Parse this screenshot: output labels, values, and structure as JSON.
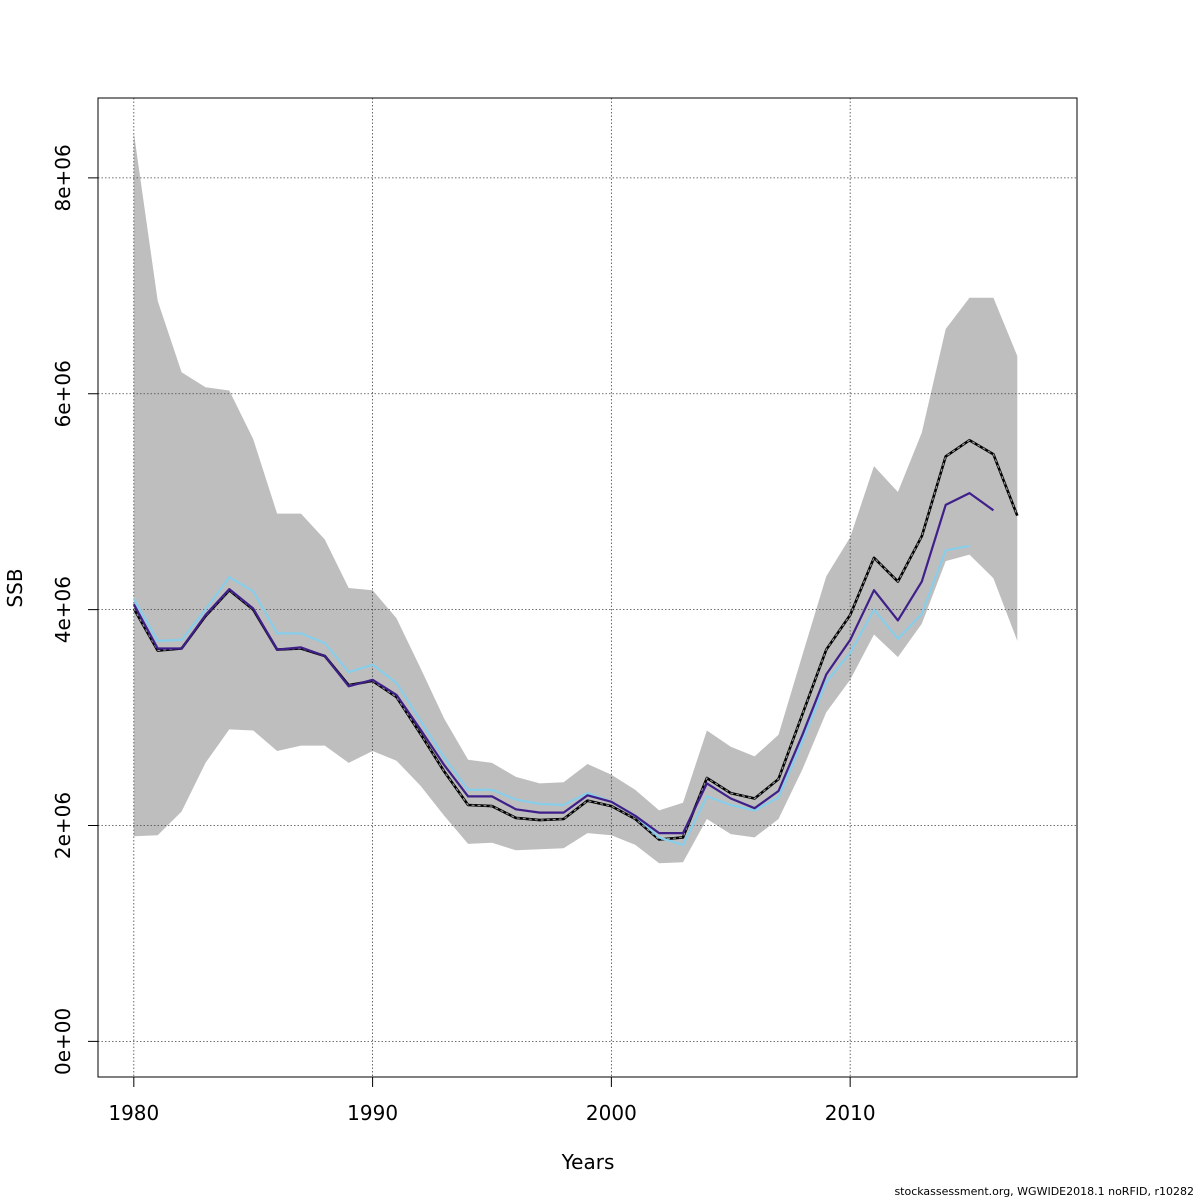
{
  "chart_data": {
    "type": "line",
    "xlabel": "Years",
    "ylabel": "SSB",
    "xlim": [
      1978.5,
      2019.5
    ],
    "ylim": [
      -330000,
      8740000
    ],
    "x_ticks": [
      1980,
      1990,
      2000,
      2010
    ],
    "y_ticks": [
      {
        "value": 0,
        "label": "0e+00"
      },
      {
        "value": 2000000,
        "label": "2e+06"
      },
      {
        "value": 4000000,
        "label": "4e+06"
      },
      {
        "value": 6000000,
        "label": "6e+06"
      },
      {
        "value": 8000000,
        "label": "8e+06"
      }
    ],
    "grid": true,
    "band": {
      "color": "#bebebe",
      "x": [
        1980,
        1981,
        1982,
        1983,
        1984,
        1985,
        1986,
        1987,
        1988,
        1989,
        1990,
        1991,
        1992,
        1993,
        1994,
        1995,
        1996,
        1997,
        1998,
        1999,
        2000,
        2001,
        2002,
        2003,
        2004,
        2005,
        2006,
        2007,
        2008,
        2009,
        2010,
        2011,
        2012,
        2013,
        2014,
        2015,
        2016,
        2017
      ],
      "upper": [
        8420000,
        6860000,
        6200000,
        6060000,
        6030000,
        5580000,
        4890000,
        4890000,
        4650000,
        4200000,
        4180000,
        3920000,
        3460000,
        2990000,
        2610000,
        2580000,
        2450000,
        2390000,
        2400000,
        2570000,
        2470000,
        2330000,
        2140000,
        2210000,
        2880000,
        2730000,
        2640000,
        2840000,
        3580000,
        4310000,
        4670000,
        5330000,
        5090000,
        5640000,
        6600000,
        6890000,
        6890000,
        6350000
      ],
      "lower": [
        1900000,
        1910000,
        2130000,
        2580000,
        2890000,
        2880000,
        2690000,
        2740000,
        2740000,
        2580000,
        2690000,
        2600000,
        2370000,
        2090000,
        1830000,
        1840000,
        1770000,
        1780000,
        1790000,
        1930000,
        1910000,
        1820000,
        1650000,
        1660000,
        2060000,
        1920000,
        1890000,
        2060000,
        2520000,
        3050000,
        3350000,
        3770000,
        3560000,
        3870000,
        4450000,
        4510000,
        4290000,
        3710000
      ]
    },
    "series": [
      {
        "color": "#000000",
        "dashed": true,
        "x": [
          1980,
          1981,
          1982,
          1983,
          1984,
          1985,
          1986,
          1987,
          1988,
          1989,
          1990,
          1991,
          1992,
          1993,
          1994,
          1995,
          1996,
          1997,
          1998,
          1999,
          2000,
          2001,
          2002,
          2003,
          2004,
          2005,
          2006,
          2007,
          2008,
          2009,
          2010,
          2011,
          2012,
          2013,
          2014,
          2015,
          2016,
          2017
        ],
        "values": [
          4010000,
          3620000,
          3640000,
          3940000,
          4180000,
          4000000,
          3630000,
          3640000,
          3570000,
          3300000,
          3340000,
          3190000,
          2850000,
          2500000,
          2190000,
          2180000,
          2070000,
          2050000,
          2060000,
          2230000,
          2180000,
          2060000,
          1870000,
          1890000,
          2440000,
          2300000,
          2250000,
          2430000,
          3030000,
          3630000,
          3950000,
          4480000,
          4260000,
          4680000,
          5420000,
          5570000,
          5440000,
          4870000
        ]
      },
      {
        "color": "#87ceeb",
        "dashed": false,
        "x": [
          1980,
          1981,
          1982,
          1983,
          1984,
          1985,
          1986,
          1987,
          1988,
          1989,
          1990,
          1991,
          1992,
          1993,
          1994,
          1995,
          1996,
          1997,
          1998,
          1999,
          2000,
          2001,
          2002,
          2003,
          2004,
          2005,
          2006,
          2007,
          2008,
          2009,
          2010,
          2011,
          2012,
          2013,
          2014,
          2015
        ],
        "values": [
          4100000,
          3710000,
          3720000,
          4000000,
          4300000,
          4170000,
          3780000,
          3780000,
          3690000,
          3420000,
          3490000,
          3320000,
          2970000,
          2630000,
          2330000,
          2330000,
          2240000,
          2200000,
          2190000,
          2300000,
          2220000,
          2090000,
          1890000,
          1820000,
          2270000,
          2190000,
          2140000,
          2260000,
          2780000,
          3330000,
          3600000,
          4000000,
          3730000,
          3960000,
          4550000,
          4590000
        ]
      },
      {
        "color": "#3f1f8a",
        "dashed": false,
        "x": [
          1980,
          1981,
          1982,
          1983,
          1984,
          1985,
          1986,
          1987,
          1988,
          1989,
          1990,
          1991,
          1992,
          1993,
          1994,
          1995,
          1996,
          1997,
          1998,
          1999,
          2000,
          2001,
          2002,
          2003,
          2004,
          2005,
          2006,
          2007,
          2008,
          2009,
          2010,
          2011,
          2012,
          2013,
          2014,
          2015,
          2016
        ],
        "values": [
          4050000,
          3640000,
          3640000,
          3950000,
          4190000,
          4010000,
          3630000,
          3650000,
          3570000,
          3290000,
          3350000,
          3210000,
          2890000,
          2560000,
          2270000,
          2270000,
          2150000,
          2120000,
          2120000,
          2280000,
          2220000,
          2090000,
          1930000,
          1930000,
          2390000,
          2250000,
          2160000,
          2320000,
          2840000,
          3400000,
          3720000,
          4180000,
          3900000,
          4260000,
          4970000,
          5080000,
          4920000
        ]
      }
    ]
  },
  "footer": "stockassessment.org, WGWIDE2018.1 noRFID, r10282"
}
